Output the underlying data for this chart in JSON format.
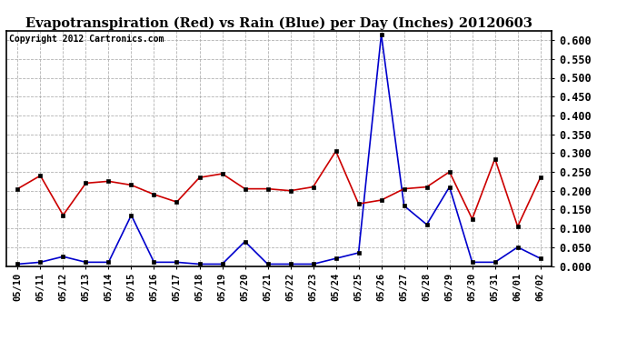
{
  "title": "Evapotranspiration (Red) vs Rain (Blue) per Day (Inches) 20120603",
  "copyright": "Copyright 2012 Cartronics.com",
  "dates": [
    "05/10",
    "05/11",
    "05/12",
    "05/13",
    "05/14",
    "05/15",
    "05/16",
    "05/17",
    "05/18",
    "05/19",
    "05/20",
    "05/21",
    "05/22",
    "05/23",
    "05/24",
    "05/25",
    "05/26",
    "05/27",
    "05/28",
    "05/29",
    "05/30",
    "05/31",
    "06/01",
    "06/02"
  ],
  "evapotranspiration": [
    0.205,
    0.24,
    0.135,
    0.22,
    0.225,
    0.215,
    0.19,
    0.17,
    0.235,
    0.245,
    0.205,
    0.205,
    0.2,
    0.21,
    0.305,
    0.165,
    0.175,
    0.205,
    0.21,
    0.25,
    0.125,
    0.285,
    0.105,
    0.235
  ],
  "rain": [
    0.005,
    0.01,
    0.025,
    0.01,
    0.01,
    0.135,
    0.01,
    0.01,
    0.005,
    0.005,
    0.065,
    0.005,
    0.005,
    0.005,
    0.02,
    0.035,
    0.615,
    0.16,
    0.11,
    0.21,
    0.01,
    0.01,
    0.05,
    0.02
  ],
  "ylim": [
    0.0,
    0.625
  ],
  "yticks": [
    0.0,
    0.05,
    0.1,
    0.15,
    0.2,
    0.25,
    0.3,
    0.35,
    0.4,
    0.45,
    0.5,
    0.55,
    0.6
  ],
  "red_color": "#cc0000",
  "blue_color": "#0000cc",
  "bg_color": "#ffffff",
  "grid_color": "#aaaaaa",
  "title_fontsize": 10.5,
  "copyright_fontsize": 7,
  "tick_fontsize": 7.5,
  "ytick_fontsize": 8.5
}
